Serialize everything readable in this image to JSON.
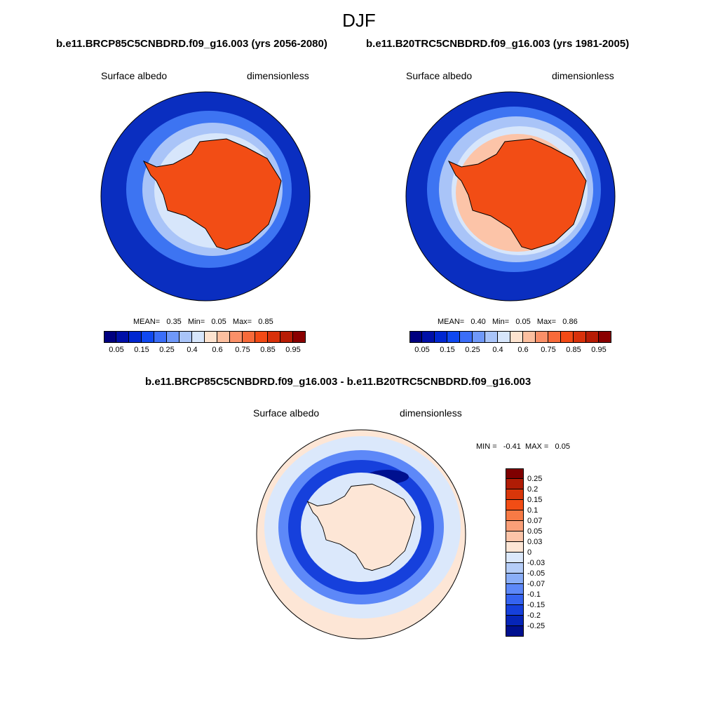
{
  "figure": {
    "title": "DJF"
  },
  "panels": [
    {
      "case_label": "b.e11.BRCP85C5CNBDRD.f09_g16.003 (yrs 2056-2080)",
      "variable": "Surface albedo",
      "units": "dimensionless",
      "stats": {
        "mean_label": "MEAN=",
        "mean": "0.35",
        "min_label": "Min=",
        "min": "0.05",
        "max_label": "Max=",
        "max": "0.85"
      }
    },
    {
      "case_label": "b.e11.B20TRC5CNBDRD.f09_g16.003 (yrs 1981-2005)",
      "variable": "Surface albedo",
      "units": "dimensionless",
      "stats": {
        "mean_label": "MEAN=",
        "mean": "0.40",
        "min_label": "Min=",
        "min": "0.05",
        "max_label": "Max=",
        "max": "0.86"
      }
    }
  ],
  "abs_colorbar": {
    "colors": [
      "#00007f",
      "#0010a8",
      "#0027d0",
      "#0f48f0",
      "#3b6ef8",
      "#6f98f8",
      "#a9c4f8",
      "#d7e6fb",
      "#fde3cf",
      "#fcbf9f",
      "#fa9068",
      "#f76a3a",
      "#f24a15",
      "#d8310a",
      "#b71c05",
      "#8a0000"
    ],
    "ticks": [
      "0.05",
      "0.15",
      "0.25",
      "0.4",
      "0.6",
      "0.75",
      "0.85",
      "0.95"
    ]
  },
  "difference": {
    "label": "b.e11.BRCP85C5CNBDRD.f09_g16.003 - b.e11.B20TRC5CNBDRD.f09_g16.003",
    "variable": "Surface albedo",
    "units": "dimensionless",
    "stats": {
      "min_label": "MIN =",
      "min": "-0.41",
      "max_label": "MAX =",
      "max": "0.05"
    },
    "colorbar": {
      "colors": [
        "#7f0000",
        "#b01c05",
        "#d8360a",
        "#f24d15",
        "#f77a45",
        "#fa9f78",
        "#fcc4a8",
        "#fde6d6",
        "#dbe8fb",
        "#b5cdf8",
        "#8aaef8",
        "#5d88f8",
        "#3563f0",
        "#1640dc",
        "#0625b8",
        "#00108f"
      ],
      "labels": [
        "0.25",
        "0.2",
        "0.15",
        "0.1",
        "0.07",
        "0.05",
        "0.03",
        "0",
        "-0.03",
        "-0.05",
        "-0.07",
        "-0.1",
        "-0.15",
        "-0.2",
        "-0.25"
      ]
    }
  },
  "map_colors": {
    "ocean_deep": "#0a2ec0",
    "ice_mid": "#3d74f2",
    "ice_light": "#a9c4f8",
    "ice_pale": "#d7e6fb",
    "land_high": "#f24d15",
    "land_edge": "#fcc4a8",
    "land_cream": "#fde6d6",
    "diff_neutral": "#fde6d6",
    "diff_light": "#dbe8fb",
    "diff_mid": "#5d88f8",
    "diff_strong": "#1640dc",
    "diff_max": "#00108f"
  }
}
